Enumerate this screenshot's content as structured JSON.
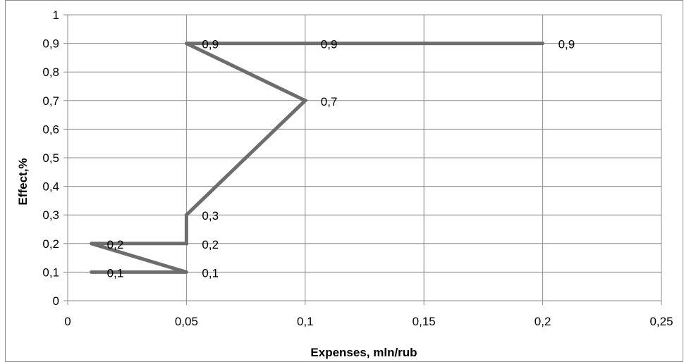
{
  "chart_data": {
    "type": "line",
    "title": "",
    "xlabel": "Expenses, mln/rub",
    "ylabel": "Effect,%",
    "xlim": [
      0,
      0.25
    ],
    "ylim": [
      0,
      1
    ],
    "x_ticks": [
      0,
      0.05,
      0.1,
      0.15,
      0.2,
      0.25
    ],
    "x_tick_labels": [
      "0",
      "0,05",
      "0,1",
      "0,15",
      "0,2",
      "0,25"
    ],
    "y_ticks": [
      0,
      0.1,
      0.2,
      0.3,
      0.4,
      0.5,
      0.6,
      0.7,
      0.8,
      0.9,
      1
    ],
    "y_tick_labels": [
      "0",
      "0,1",
      "0,2",
      "0,3",
      "0,4",
      "0,5",
      "0,6",
      "0,7",
      "0,8",
      "0,9",
      "1"
    ],
    "grid": true,
    "legend": "none",
    "series_color": "#6d6d6d",
    "series": [
      {
        "points": [
          {
            "x": 0.01,
            "y": 0.1,
            "label": "0,1"
          },
          {
            "x": 0.05,
            "y": 0.1,
            "label": "0,1"
          },
          {
            "x": 0.01,
            "y": 0.2,
            "label": "0,2"
          },
          {
            "x": 0.05,
            "y": 0.2,
            "label": "0,2"
          },
          {
            "x": 0.05,
            "y": 0.3,
            "label": "0,3"
          },
          {
            "x": 0.1,
            "y": 0.7,
            "label": "0,7"
          },
          {
            "x": 0.05,
            "y": 0.9,
            "label": "0,9"
          },
          {
            "x": 0.1,
            "y": 0.9,
            "label": "0,9"
          },
          {
            "x": 0.2,
            "y": 0.9,
            "label": "0,9"
          }
        ]
      }
    ]
  }
}
